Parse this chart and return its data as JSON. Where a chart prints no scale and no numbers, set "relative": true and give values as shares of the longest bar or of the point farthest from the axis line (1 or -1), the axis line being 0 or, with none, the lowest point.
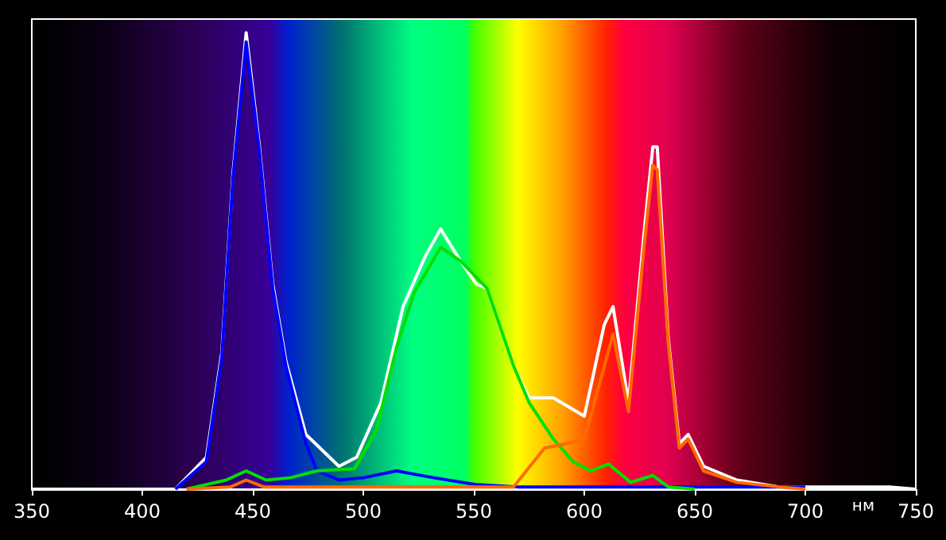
{
  "chart_data": {
    "type": "line",
    "relative": true,
    "xlabel": "нм",
    "xlim": [
      350,
      750
    ],
    "xticks": [
      350,
      400,
      450,
      500,
      550,
      600,
      650,
      700,
      750
    ],
    "grid": false,
    "marker": "none",
    "line_style": "solid",
    "series": [
      {
        "color": "#ffffff",
        "x": [
          350,
          400,
          415,
          429,
          436,
          441,
          447,
          453,
          459,
          465,
          474,
          489,
          497,
          508,
          518,
          528,
          535,
          544,
          551,
          556,
          568,
          575,
          586,
          600,
          609,
          613,
          620,
          627,
          631,
          633,
          638,
          643,
          647,
          654,
          669,
          688,
          700,
          738,
          750
        ],
        "values": [
          0,
          0,
          0,
          0.07,
          0.3,
          0.69,
          1,
          0.75,
          0.45,
          0.28,
          0.12,
          0.05,
          0.07,
          0.19,
          0.4,
          0.51,
          0.57,
          0.5,
          0.45,
          0.44,
          0.27,
          0.2,
          0.2,
          0.16,
          0.36,
          0.4,
          0.19,
          0.56,
          0.75,
          0.75,
          0.33,
          0.1,
          0.12,
          0.05,
          0.02,
          0.005,
          0.005,
          0.005,
          0
        ]
      },
      {
        "color": "#0000ff",
        "x": [
          415,
          429,
          436,
          441,
          447,
          453,
          459,
          465,
          474,
          479,
          489,
          500,
          515,
          532,
          551,
          570,
          600,
          650,
          700
        ],
        "values": [
          0,
          0.06,
          0.29,
          0.68,
          0.98,
          0.74,
          0.44,
          0.27,
          0.1,
          0.04,
          0.02,
          0.025,
          0.04,
          0.025,
          0.01,
          0.005,
          0.005,
          0.005,
          0.005
        ]
      },
      {
        "color": "#00e000",
        "x": [
          420,
          438,
          447,
          456,
          467,
          479,
          496,
          506,
          515,
          523,
          535,
          544,
          556,
          568,
          575,
          586,
          595,
          603,
          611,
          621,
          631,
          638,
          650
        ],
        "values": [
          0,
          0.02,
          0.04,
          0.02,
          0.025,
          0.04,
          0.045,
          0.13,
          0.31,
          0.43,
          0.53,
          0.5,
          0.44,
          0.27,
          0.19,
          0.11,
          0.06,
          0.04,
          0.055,
          0.015,
          0.03,
          0.005,
          0
        ]
      },
      {
        "color": "#ff6a00",
        "x": [
          420,
          440,
          447,
          455,
          470,
          560,
          568,
          582,
          592,
          600,
          608,
          613,
          620,
          627,
          631,
          633,
          638,
          643,
          647,
          654,
          669,
          688,
          700
        ],
        "values": [
          0,
          0.005,
          0.02,
          0.005,
          0.005,
          0.005,
          0.005,
          0.09,
          0.1,
          0.11,
          0.25,
          0.34,
          0.17,
          0.53,
          0.71,
          0.7,
          0.32,
          0.09,
          0.11,
          0.04,
          0.015,
          0.005,
          0
        ]
      }
    ]
  }
}
